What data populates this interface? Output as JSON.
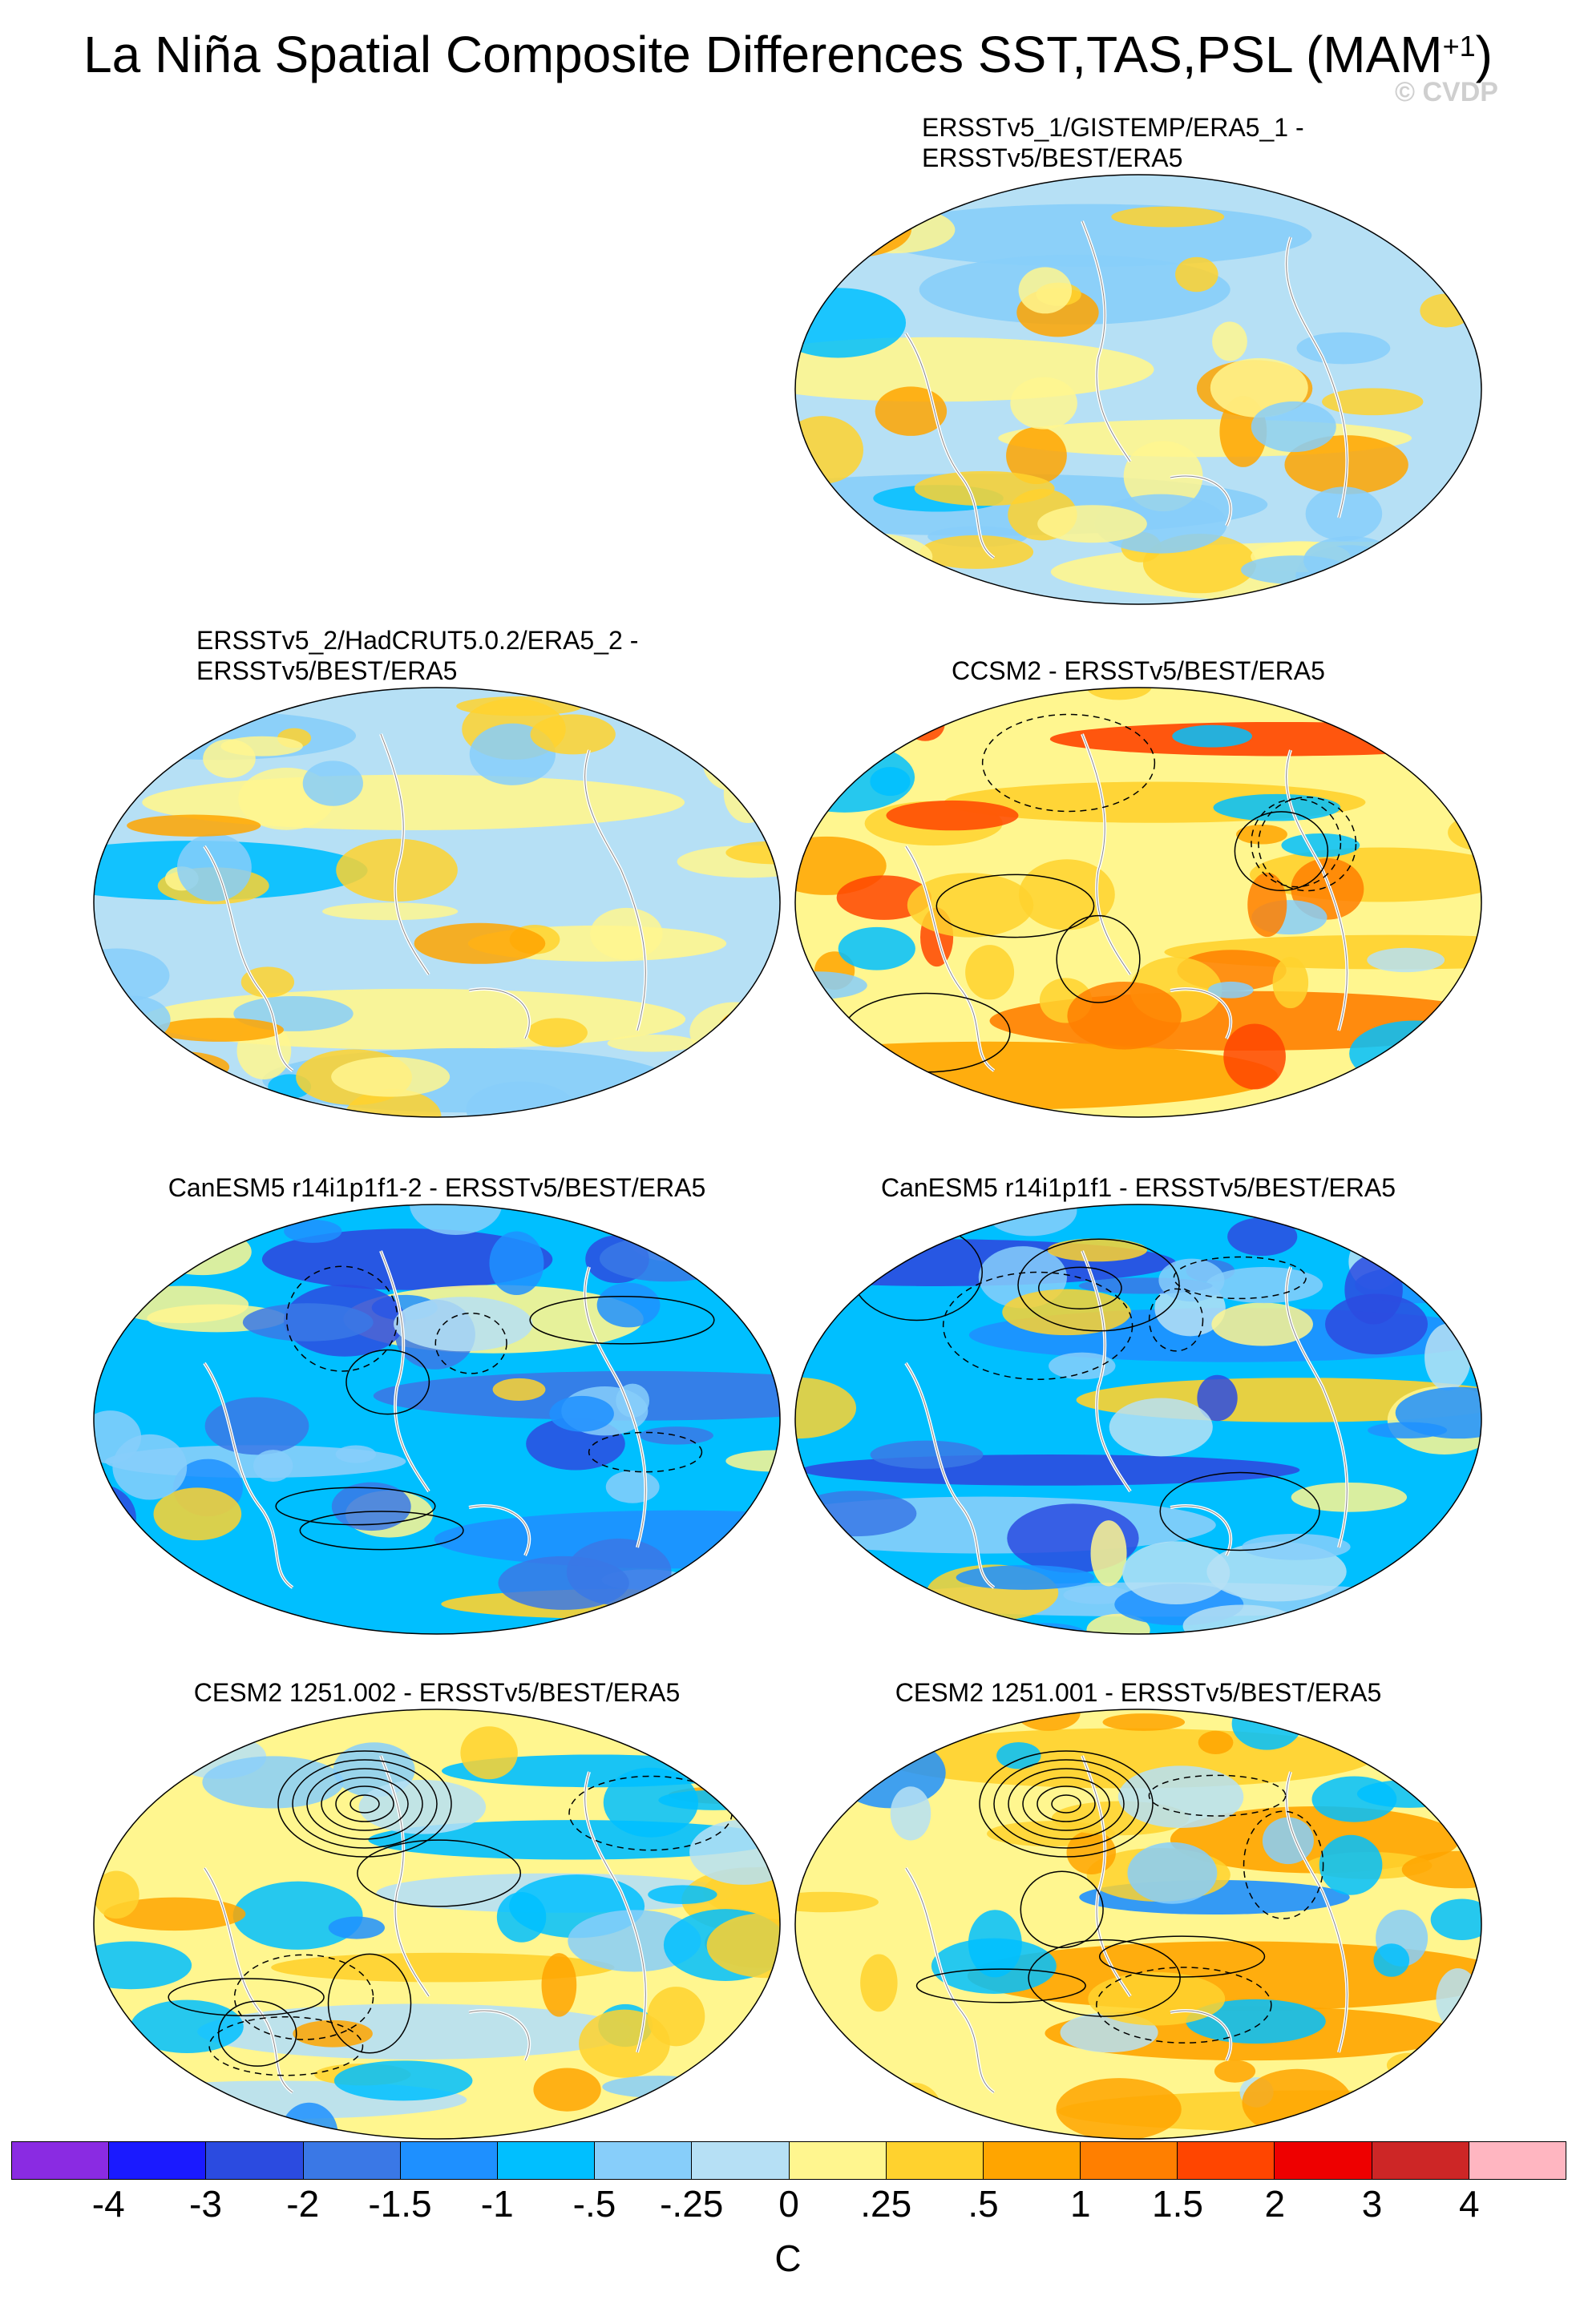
{
  "title": "La Niña Spatial Composite Differences SST,TAS,PSL (MAM",
  "title_superscript": "+1",
  "title_suffix": ")",
  "copyright": "© CVDP",
  "panels": [
    {
      "line1": "ERSSTv5_1/GISTEMP/ERA5_1 -",
      "line2": "ERSSTv5/BEST/ERA5",
      "style": "weak"
    },
    {
      "line1": "ERSSTv5_2/HadCRUT5.0.2/ERA5_2 -",
      "line2": "ERSSTv5/BEST/ERA5",
      "style": "weak"
    },
    {
      "line1": "CCSM2 - ERSSTv5/BEST/ERA5",
      "line2": "",
      "style": "ccsm"
    },
    {
      "line1": "CanESM5 r14i1p1f1-2 - ERSSTv5/BEST/ERA5",
      "line2": "",
      "style": "canesm"
    },
    {
      "line1": "CanESM5 r14i1p1f1 - ERSSTv5/BEST/ERA5",
      "line2": "",
      "style": "canesm"
    },
    {
      "line1": "CESM2 1251.002 - ERSSTv5/BEST/ERA5",
      "line2": "",
      "style": "cesm"
    },
    {
      "line1": "CESM2 1251.001 - ERSSTv5/BEST/ERA5",
      "line2": "",
      "style": "cesm"
    }
  ],
  "colorbar": {
    "colors": [
      "#8a2be2",
      "#1a1aff",
      "#2b4be0",
      "#3a78e6",
      "#1e90ff",
      "#00bfff",
      "#87cefa",
      "#b6e0f5",
      "#fff68f",
      "#ffd22e",
      "#ffa500",
      "#ff7f00",
      "#ff4500",
      "#ee0000",
      "#cd2626",
      "#ffb6c1"
    ],
    "labels": [
      "-4",
      "-3",
      "-2",
      "-1.5",
      "-1",
      "-.5",
      "-.25",
      "0",
      ".25",
      ".5",
      "1",
      "1.5",
      "2",
      "3",
      "4"
    ],
    "unit": "C"
  }
}
